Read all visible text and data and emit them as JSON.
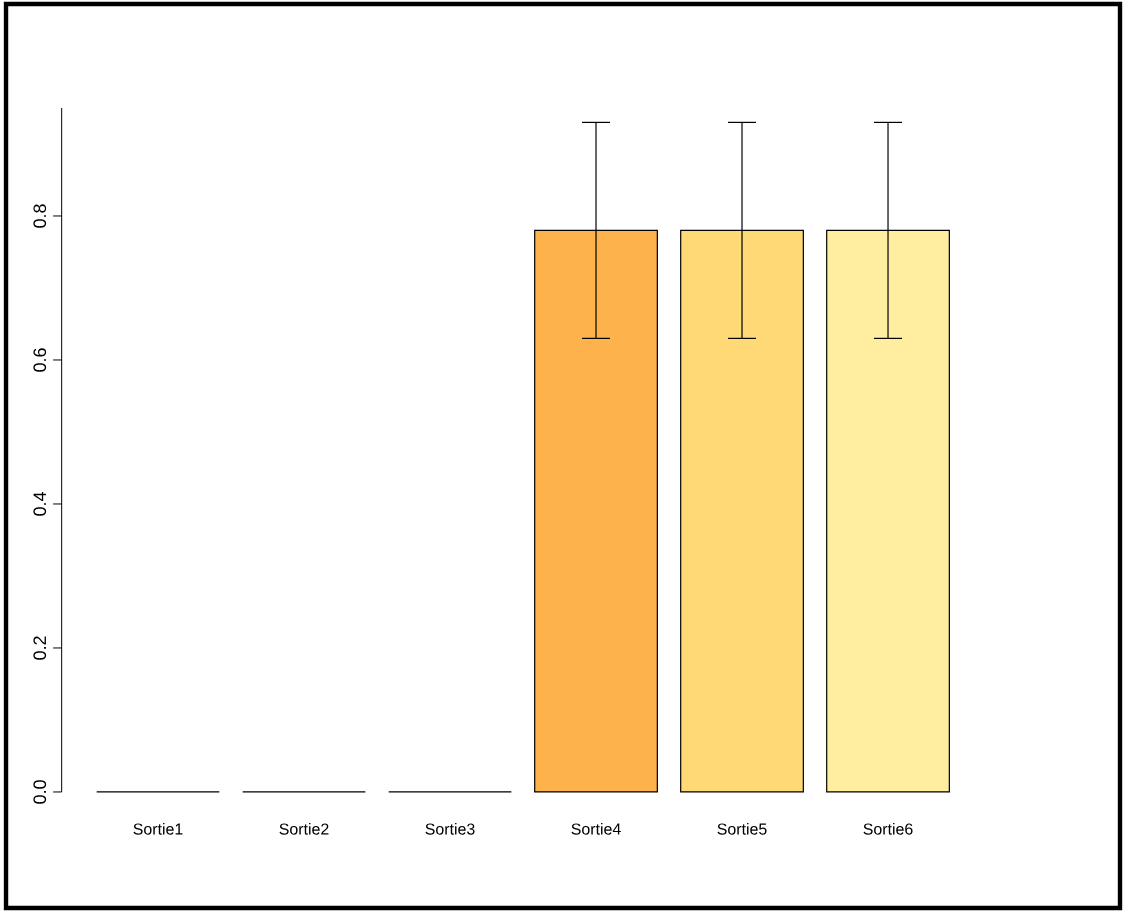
{
  "chart_data": {
    "type": "bar",
    "categories": [
      "Sortie1",
      "Sortie2",
      "Sortie3",
      "Sortie4",
      "Sortie5",
      "Sortie6"
    ],
    "values": [
      0,
      0,
      0,
      0.78,
      0.78,
      0.78
    ],
    "errors": [
      null,
      null,
      null,
      [
        0.63,
        0.93
      ],
      [
        0.63,
        0.93
      ],
      [
        0.63,
        0.93
      ]
    ],
    "colors": [
      "#e31a1c",
      "#fc4e2a",
      "#fd8d3c",
      "#feb24c",
      "#fed976",
      "#ffeda0"
    ],
    "ylim": [
      0,
      0.95
    ],
    "yticks": [
      {
        "value": 0,
        "label": "0.0"
      },
      0.2,
      0.4,
      0.6,
      0.8
    ]
  }
}
